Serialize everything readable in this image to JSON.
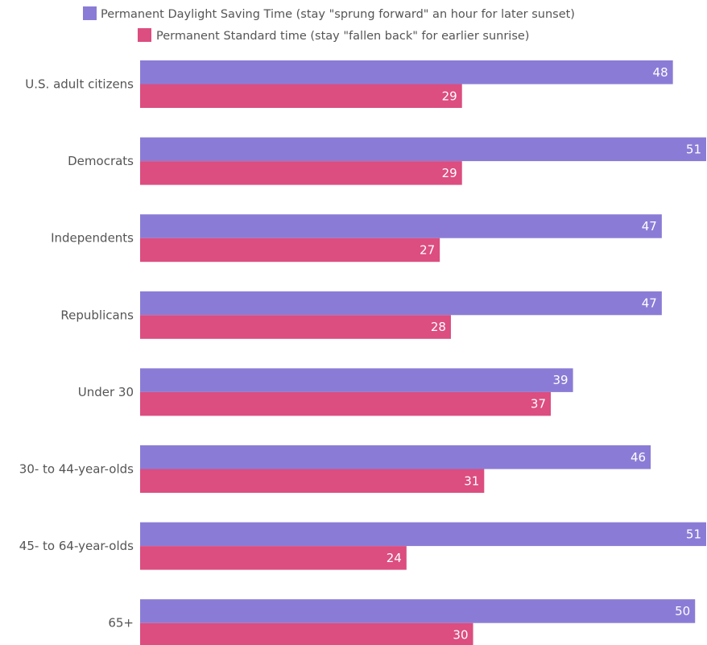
{
  "chart_data": {
    "type": "bar",
    "orientation": "horizontal",
    "categories": [
      "U.S. adult citizens",
      "Democrats",
      "Independents",
      "Republicans",
      "Under 30",
      "30- to 44-year-olds",
      "45- to 64-year-olds",
      "65+"
    ],
    "series": [
      {
        "name": "Permanent Daylight Saving Time (stay \"sprung forward\" an hour for later sunset)",
        "color": "#8a7cd6",
        "values": [
          48,
          51,
          47,
          47,
          39,
          46,
          51,
          50
        ]
      },
      {
        "name": "Permanent Standard time (stay \"fallen back\" for earlier sunrise)",
        "color": "#dc4d80",
        "values": [
          29,
          29,
          27,
          28,
          37,
          31,
          24,
          30
        ]
      }
    ],
    "xlim": [
      0,
      51
    ],
    "legend_position": "top",
    "grid": false
  }
}
